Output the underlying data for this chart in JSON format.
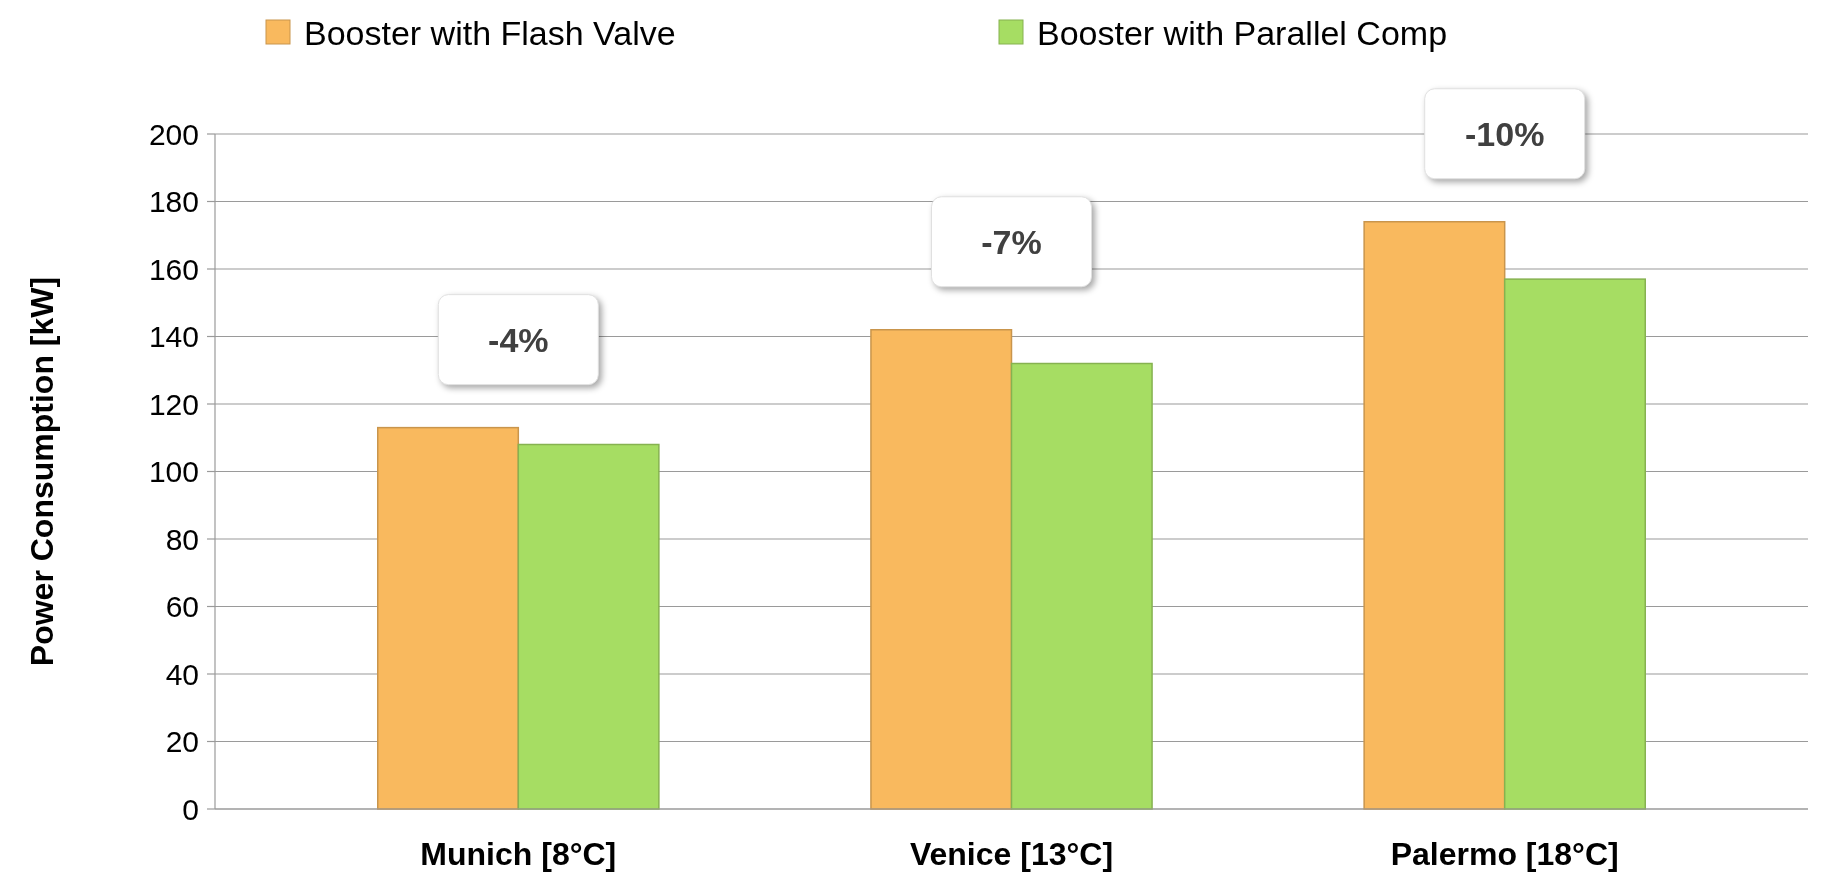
{
  "chart_data": {
    "type": "bar",
    "ylabel": "Power Consumption [kW]",
    "categories": [
      "Munich [8°C]",
      "Venice [13°C]",
      "Palermo [18°C]"
    ],
    "series": [
      {
        "name": "Booster with Flash Valve",
        "color": "#f9b95e",
        "values": [
          113,
          142,
          174
        ]
      },
      {
        "name": "Booster with Parallel Comp",
        "color": "#a6dd63",
        "values": [
          108,
          132,
          157
        ]
      }
    ],
    "ylim": [
      0,
      200
    ],
    "yticks": [
      0,
      20,
      40,
      60,
      80,
      100,
      120,
      140,
      160,
      180,
      200
    ],
    "grid": "y",
    "legend": "top",
    "annotations": [
      {
        "text": "-4%",
        "x": "Munich [8°C]",
        "y": 113
      },
      {
        "text": "-7%",
        "x": "Venice [13°C]",
        "y": 142
      },
      {
        "text": "-10%",
        "x": "Palermo [18°C]",
        "y": 174
      }
    ]
  }
}
